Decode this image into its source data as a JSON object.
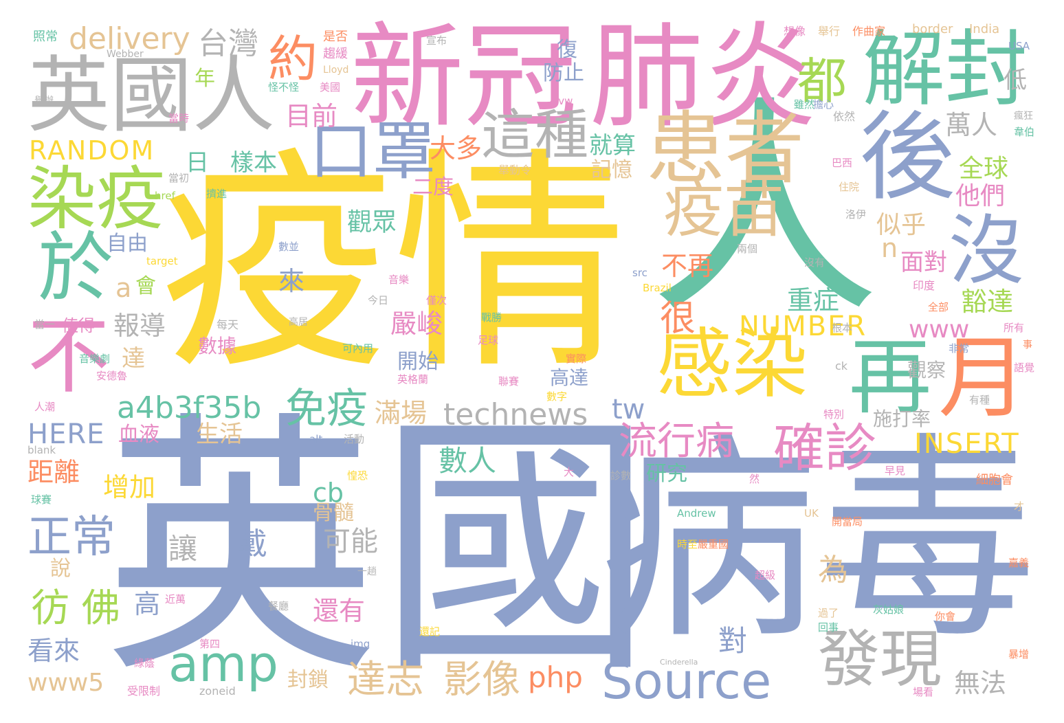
{
  "palette": {
    "yellow": "#fcd835",
    "blue": "#8da0cb",
    "green": "#66c2a5",
    "pink": "#e78ac3",
    "gray": "#b3b3b3",
    "tan": "#e5c494",
    "lime": "#a6d854",
    "orange": "#fc8d62",
    "background": "#ffffff"
  },
  "words": {
    "w1": "疫情",
    "w2": "英國",
    "w3": "人",
    "w4": "病毒",
    "w5": "新冠",
    "w6": "肺炎",
    "w7": "英國人",
    "w8": "解封",
    "w9": "患者",
    "w10": "後",
    "w11": "感染",
    "w12": "疫苗",
    "w13": "染疫",
    "w14": "於",
    "w15": "不",
    "w16": "沒",
    "w17": "再",
    "w18": "月",
    "w19": "發現",
    "w20": "口罩",
    "w21": "這種",
    "w22": "Source",
    "w23": "amp",
    "w24": "確診",
    "w25": "約",
    "w26": "都",
    "w27": "流行病",
    "w28": "免疫",
    "w29": "a4b3f35b",
    "w30": "technews",
    "w31": "RANDOM",
    "w32": "NUMBER",
    "w33": "INSERT",
    "w34": "HERE",
    "w35": "delivery",
    "w36": "台灣",
    "w37": "正常",
    "w38": "彷 佛",
    "w39": "達志",
    "w40": "影像",
    "w41": "php",
    "w42": "www5",
    "w43": "www",
    "w44": "tw",
    "w45": "cb",
    "w46": "目前",
    "w47": "大多",
    "w48": "萬人",
    "w49": "全球",
    "w50": "他們",
    "w51": "似乎",
    "w52": "就算",
    "w53": "記憶",
    "w54": "觀眾",
    "w55": "二度",
    "w56": "樣本",
    "w57": "日",
    "w58": "自由",
    "w59": "不再",
    "w60": "很",
    "w61": "重症",
    "w62": "豁達",
    "w63": "面對",
    "w64": "n",
    "w65": "嚴峻",
    "w66": "報導",
    "w67": "來",
    "w68": "a",
    "w69": "會",
    "w70": "開始",
    "w71": "滿場",
    "w72": "生活",
    "w73": "血液",
    "w74": "距離",
    "w75": "增加",
    "w76": "數人",
    "w77": "研究",
    "w78": "可能",
    "w79": "讓",
    "w80": "戴",
    "w81": "骨髓",
    "w82": "說",
    "w83": "達",
    "w84": "高",
    "w85": "看來",
    "w86": "還有",
    "w87": "對",
    "w88": "封鎖",
    "w89": "為",
    "w90": "無法",
    "w91": "高達",
    "w92": "施打率",
    "w93": "觀察",
    "w94": "防止",
    "w95": "復",
    "w96": "低",
    "w97": "年",
    "w98": "數據",
    "w99": "值得",
    "w100": "每天",
    "w101": "照常",
    "w102": "Webber",
    "w103": "宣布",
    "w104": "是否",
    "w105": "趨緩",
    "w106": "Lloyd",
    "w107": "美國",
    "w108": "怪不怪",
    "w109": "想像",
    "w110": "舉行",
    "w111": "作曲家",
    "w112": "border",
    "w113": "India",
    "w114": "USA",
    "w115": "avw",
    "w116": "擔心",
    "w117": "雖然",
    "w118": "依然",
    "w119": "瘋狂",
    "w120": "韋伯",
    "w121": "巴西",
    "w122": "舉動令",
    "w123": "住院",
    "w124": "洛伊",
    "w125": "當時",
    "w126": "當初",
    "w127": "href",
    "w128": "target",
    "w129": "src",
    "w130": "Brazil",
    "w131": "兩個",
    "w132": "沒有",
    "w133": "印度",
    "w134": "全部",
    "w135": "所有",
    "w136": "音樂",
    "w137": "今日",
    "w138": "僅次",
    "w139": "非常",
    "w140": "根本",
    "w141": "事",
    "w142": "音樂劇",
    "w143": "安德魯",
    "w144": "人潮",
    "w145": "英格蘭",
    "w146": "聯賽",
    "w147": "實際",
    "w148": "足球",
    "w149": "可內用",
    "w150": "戰勝",
    "w151": "特別",
    "w152": "有種",
    "w153": "語覺",
    "w154": "數字",
    "w155": "ck",
    "w156": "球賽",
    "w157": "alt",
    "w158": "blank",
    "w159": "活動",
    "w160": "惶恐",
    "w161": "大",
    "w162": "然",
    "w163": "診數",
    "w164": "細胞會",
    "w165": "早見",
    "w166": "Andrew",
    "w167": "UK",
    "w168": "開當局",
    "w169": "嚴重國",
    "w170": "時至",
    "w171": "超級",
    "w172": "近萬",
    "w173": "餐廳",
    "w174": "一趟",
    "w175": "第四",
    "w176": "還記",
    "w177": "回事",
    "w178": "過了",
    "w179": "灰姑娘",
    "w180": "你會",
    "w181": "嘉義",
    "w182": "暴增",
    "w183": "Cinderella",
    "w184": "受限制",
    "w185": "zoneid",
    "w186": "img",
    "w187": "場看",
    "w188": "綠蔭",
    "w189": "擠進",
    "w190": "數並",
    "w191": "高居",
    "w192": "當一",
    "w193": "舉辦",
    "w194": "才"
  }
}
